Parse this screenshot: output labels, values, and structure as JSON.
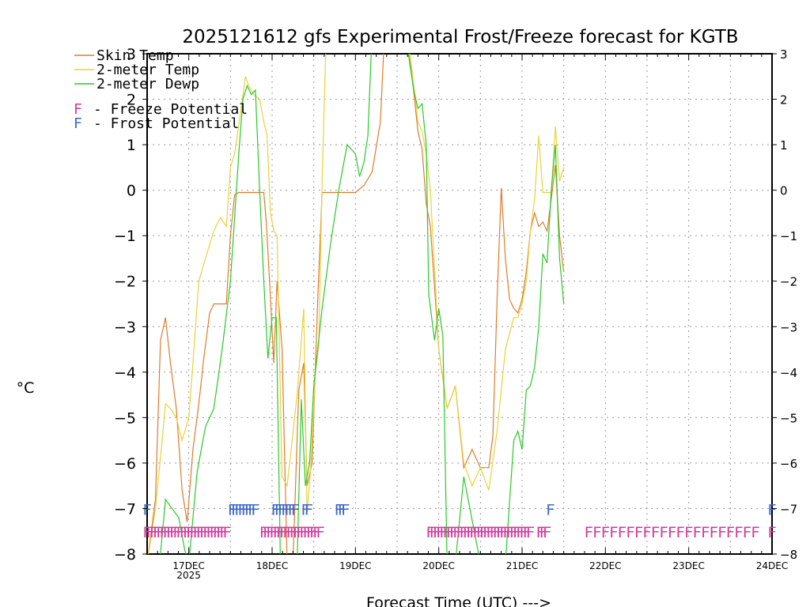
{
  "chart_data": {
    "type": "line",
    "title": "2025121612 gfs Experimental Frost/Freeze forecast for KGTB",
    "xlabel": "Forecast Time (UTC) --->",
    "ylabel": "°C",
    "ylim": [
      -8,
      3
    ],
    "xlim": [
      16.5,
      24.0
    ],
    "yticks": [
      "-8",
      "-7",
      "-6",
      "-5",
      "-4",
      "-3",
      "-2",
      "-1",
      "0",
      "1",
      "2",
      "3"
    ],
    "xticks": [
      {
        "label": "17DEC",
        "sub": "2025",
        "day": 17
      },
      {
        "label": "18DEC",
        "sub": "",
        "day": 18
      },
      {
        "label": "19DEC",
        "sub": "",
        "day": 19
      },
      {
        "label": "20DEC",
        "sub": "",
        "day": 20
      },
      {
        "label": "21DEC",
        "sub": "",
        "day": 21
      },
      {
        "label": "22DEC",
        "sub": "",
        "day": 22
      },
      {
        "label": "23DEC",
        "sub": "",
        "day": 23
      },
      {
        "label": "24DEC",
        "sub": "",
        "day": 24
      }
    ],
    "legend": [
      {
        "label": "Skin Temp",
        "color": "#e07b2a"
      },
      {
        "label": "2-meter Temp",
        "color": "#e8d23a"
      },
      {
        "label": "2-meter Dewp",
        "color": "#2bc82b"
      }
    ],
    "potential_legend": [
      {
        "marker": "F",
        "text": "- Freeze Potential",
        "color": "#d6379c"
      },
      {
        "marker": "F",
        "text": "- Frost Potential",
        "color": "#3c64c8"
      }
    ],
    "series": [
      {
        "name": "Skin Temp",
        "color": "#e07b2a",
        "x": [
          16.5,
          16.6,
          16.66,
          16.72,
          16.78,
          16.85,
          16.92,
          16.98,
          17.05,
          17.12,
          17.18,
          17.25,
          17.3,
          17.4,
          17.45,
          17.5,
          17.55,
          17.6,
          17.7,
          17.8,
          17.9,
          17.93,
          17.97,
          18.02,
          18.06,
          18.12,
          18.18,
          18.25,
          18.32,
          18.38,
          18.42,
          18.48,
          18.55,
          18.6,
          18.7,
          18.8,
          18.9,
          19.0,
          19.1,
          19.2,
          19.3,
          19.35,
          19.55,
          19.62,
          19.68,
          19.75,
          19.8,
          19.85,
          19.9,
          20.0,
          20.1,
          20.2,
          20.3,
          20.4,
          20.5,
          20.6,
          20.65,
          20.7,
          20.75,
          20.8,
          20.85,
          20.9,
          20.95,
          21.0,
          21.05,
          21.1,
          21.15,
          21.2,
          21.25,
          21.3,
          21.35,
          21.4,
          21.45,
          21.5
        ],
        "y": [
          -8.2,
          -6.8,
          -3.3,
          -2.8,
          -3.8,
          -4.8,
          -6.6,
          -7.3,
          -5.7,
          -4.7,
          -3.7,
          -2.7,
          -2.5,
          -2.5,
          -2.5,
          -1.0,
          -0.1,
          -0.05,
          -0.05,
          -0.05,
          -0.05,
          -0.7,
          -2.0,
          -3.8,
          -2.0,
          -3.5,
          -8.2,
          -8.2,
          -4.4,
          -3.8,
          -6.5,
          -6.0,
          -2.3,
          -0.05,
          -0.05,
          -0.05,
          -0.05,
          -0.05,
          0.1,
          0.4,
          1.5,
          3.5,
          3.5,
          3.5,
          2.5,
          1.3,
          0.9,
          -0.3,
          -0.8,
          -3.5,
          -4.8,
          -4.3,
          -6.1,
          -5.7,
          -6.1,
          -6.1,
          -5.4,
          -2.4,
          0.05,
          -1.5,
          -2.4,
          -2.6,
          -2.7,
          -2.4,
          -1.8,
          -0.9,
          -0.5,
          -0.8,
          -0.7,
          -0.9,
          -0.2,
          0.55,
          -1.0,
          -1.8
        ]
      },
      {
        "name": "2-meter Temp",
        "color": "#e8d23a",
        "x": [
          16.5,
          16.6,
          16.68,
          16.72,
          16.78,
          16.85,
          16.92,
          17.0,
          17.05,
          17.12,
          17.2,
          17.25,
          17.3,
          17.38,
          17.45,
          17.5,
          17.55,
          17.62,
          17.68,
          17.72,
          17.78,
          17.85,
          17.9,
          17.94,
          17.98,
          18.02,
          18.06,
          18.12,
          18.18,
          18.24,
          18.3,
          18.38,
          18.42,
          18.46,
          18.52,
          18.56,
          18.6,
          18.65,
          18.7,
          19.55,
          19.62,
          19.68,
          19.75,
          19.8,
          19.85,
          19.9,
          20.0,
          20.1,
          20.2,
          20.3,
          20.4,
          20.5,
          20.6,
          20.7,
          20.8,
          20.9,
          20.95,
          21.0,
          21.05,
          21.1,
          21.15,
          21.2,
          21.25,
          21.3,
          21.35,
          21.4,
          21.45,
          21.5
        ],
        "y": [
          -8.2,
          -7.0,
          -5.5,
          -4.7,
          -4.8,
          -5.0,
          -5.5,
          -5.0,
          -3.8,
          -2.0,
          -1.5,
          -1.2,
          -0.9,
          -0.6,
          -0.8,
          0.5,
          0.8,
          1.7,
          2.5,
          2.3,
          2.1,
          2.0,
          1.5,
          1.2,
          -0.5,
          -0.9,
          -1.0,
          -6.3,
          -6.5,
          -5.5,
          -4.5,
          -2.6,
          -7.1,
          -6.2,
          -4.0,
          -3.4,
          0.2,
          3.5,
          3.5,
          3.5,
          3.5,
          2.6,
          1.5,
          1.3,
          0.8,
          0.0,
          -3.5,
          -4.8,
          -4.3,
          -6.0,
          -6.5,
          -6.1,
          -6.6,
          -5.3,
          -3.5,
          -2.8,
          -2.8,
          -2.5,
          -2.0,
          -0.9,
          -0.2,
          1.2,
          -0.05,
          -0.05,
          -0.05,
          1.4,
          0.2,
          0.5
        ]
      },
      {
        "name": "2-meter Dewp",
        "color": "#2bc82b",
        "x": [
          16.5,
          16.65,
          16.72,
          16.8,
          16.88,
          16.95,
          17.0,
          17.1,
          17.2,
          17.3,
          17.4,
          17.5,
          17.6,
          17.65,
          17.7,
          17.75,
          17.8,
          17.85,
          17.9,
          17.95,
          18.0,
          18.05,
          18.1,
          18.15,
          18.2,
          18.25,
          18.3,
          18.35,
          18.4,
          18.45,
          18.5,
          18.6,
          18.7,
          18.8,
          18.9,
          19.0,
          19.05,
          19.1,
          19.15,
          19.2,
          19.6,
          19.65,
          19.7,
          19.75,
          19.8,
          19.85,
          19.88,
          19.95,
          20.0,
          20.05,
          20.1,
          20.2,
          20.3,
          20.5,
          20.8,
          20.9,
          20.95,
          21.0,
          21.05,
          21.1,
          21.15,
          21.2,
          21.25,
          21.3,
          21.35,
          21.4,
          21.45,
          21.5
        ],
        "y": [
          -8.2,
          -8.2,
          -6.8,
          -7.0,
          -7.2,
          -7.9,
          -8.2,
          -6.2,
          -5.2,
          -4.8,
          -3.5,
          -2.0,
          0.8,
          2.0,
          2.3,
          2.1,
          2.2,
          0.0,
          -2.0,
          -3.7,
          -2.8,
          -2.8,
          -8.2,
          -8.2,
          -8.2,
          -8.2,
          -8.2,
          -4.6,
          -6.5,
          -6.0,
          -4.3,
          -2.6,
          -1.2,
          0.0,
          1.0,
          0.8,
          0.3,
          0.6,
          1.2,
          3.5,
          3.5,
          2.8,
          2.2,
          1.8,
          1.9,
          1.0,
          -2.3,
          -3.3,
          -2.6,
          -3.2,
          -8.2,
          -8.2,
          -6.3,
          -8.2,
          -8.2,
          -5.5,
          -5.3,
          -5.7,
          -4.4,
          -4.3,
          -3.9,
          -3.0,
          -1.4,
          -1.6,
          0.0,
          1.0,
          -1.5,
          -2.5
        ]
      }
    ],
    "frost_markers_label": "F",
    "freeze_markers_label": "F",
    "frost_times": [
      16.5,
      17.52,
      17.56,
      17.6,
      17.64,
      17.68,
      17.72,
      17.76,
      17.8,
      18.04,
      18.08,
      18.12,
      18.16,
      18.2,
      18.24,
      18.28,
      18.4,
      18.44,
      18.8,
      18.84,
      18.88,
      21.34,
      24.0
    ],
    "freeze_times": [
      16.5,
      16.54,
      16.58,
      16.62,
      16.66,
      16.7,
      16.74,
      16.78,
      16.82,
      16.86,
      16.9,
      16.94,
      16.98,
      17.02,
      17.06,
      17.1,
      17.14,
      17.18,
      17.22,
      17.26,
      17.3,
      17.34,
      17.38,
      17.42,
      17.46,
      17.9,
      17.94,
      17.98,
      18.02,
      18.06,
      18.1,
      18.14,
      18.18,
      18.22,
      18.26,
      18.3,
      18.34,
      18.38,
      18.42,
      18.46,
      18.5,
      18.54,
      18.58,
      19.9,
      19.94,
      19.98,
      20.02,
      20.06,
      20.1,
      20.14,
      20.18,
      20.22,
      20.26,
      20.3,
      20.34,
      20.38,
      20.42,
      20.46,
      20.5,
      20.54,
      20.58,
      20.62,
      20.66,
      20.7,
      20.74,
      20.78,
      20.82,
      20.86,
      20.9,
      20.94,
      20.98,
      21.02,
      21.06,
      21.1,
      21.22,
      21.26,
      21.3,
      21.8,
      21.9,
      22.0,
      22.1,
      22.2,
      22.3,
      22.4,
      22.5,
      22.6,
      22.7,
      22.8,
      22.9,
      23.0,
      23.1,
      23.2,
      23.3,
      23.4,
      23.5,
      23.6,
      23.7,
      23.8,
      24.0
    ]
  }
}
